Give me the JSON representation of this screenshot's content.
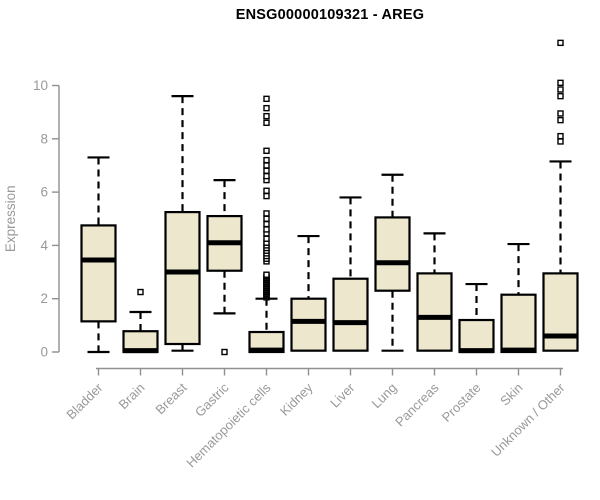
{
  "chart_data": {
    "type": "boxplot",
    "title": "ENSG00000109321 - AREG",
    "ylabel": "Expression",
    "xlabel": "",
    "ylim": [
      0,
      11.8
    ],
    "yticks": [
      0,
      2,
      4,
      6,
      8,
      10
    ],
    "grid": false,
    "legend": false,
    "categories": [
      "Bladder",
      "Brain",
      "Breast",
      "Gastric",
      "Hematopoietic cells",
      "Kidney",
      "Liver",
      "Lung",
      "Pancreas",
      "Prostate",
      "Skin",
      "Unknown / Other"
    ],
    "series": [
      {
        "category": "Bladder",
        "whisker_low": 0.0,
        "q1": 1.15,
        "median": 3.45,
        "q3": 4.75,
        "whisker_high": 7.3,
        "outliers": []
      },
      {
        "category": "Brain",
        "whisker_low": 0.0,
        "q1": 0.0,
        "median": 0.05,
        "q3": 0.78,
        "whisker_high": 1.5,
        "outliers": [
          2.25
        ]
      },
      {
        "category": "Breast",
        "whisker_low": 0.05,
        "q1": 0.3,
        "median": 3.0,
        "q3": 5.25,
        "whisker_high": 9.6,
        "outliers": []
      },
      {
        "category": "Gastric",
        "whisker_low": 1.45,
        "q1": 3.05,
        "median": 4.1,
        "q3": 5.1,
        "whisker_high": 6.45,
        "outliers": [
          0.0
        ]
      },
      {
        "category": "Hematopoietic cells",
        "whisker_low": 0.0,
        "q1": 0.0,
        "median": 0.07,
        "q3": 0.75,
        "whisker_high": 2.0,
        "outliers": [
          2.05,
          2.1,
          2.15,
          2.2,
          2.25,
          2.3,
          2.35,
          2.4,
          2.45,
          2.5,
          2.55,
          2.6,
          2.65,
          2.7,
          2.75,
          2.8,
          2.85,
          2.9,
          3.4,
          3.5,
          3.6,
          3.7,
          3.8,
          3.9,
          4.0,
          4.1,
          4.25,
          4.45,
          4.6,
          4.8,
          5.0,
          5.2,
          5.85,
          6.05,
          6.45,
          6.6,
          6.8,
          7.0,
          7.2,
          7.55,
          8.6,
          8.85,
          9.15,
          9.5
        ]
      },
      {
        "category": "Kidney",
        "whisker_low": 0.05,
        "q1": 0.05,
        "median": 1.15,
        "q3": 2.0,
        "whisker_high": 4.35,
        "outliers": []
      },
      {
        "category": "Liver",
        "whisker_low": 0.05,
        "q1": 0.05,
        "median": 1.1,
        "q3": 2.75,
        "whisker_high": 5.8,
        "outliers": []
      },
      {
        "category": "Lung",
        "whisker_low": 0.05,
        "q1": 2.3,
        "median": 3.35,
        "q3": 5.05,
        "whisker_high": 6.65,
        "outliers": []
      },
      {
        "category": "Pancreas",
        "whisker_low": 0.05,
        "q1": 0.05,
        "median": 1.3,
        "q3": 2.95,
        "whisker_high": 4.45,
        "outliers": []
      },
      {
        "category": "Prostate",
        "whisker_low": 0.0,
        "q1": 0.0,
        "median": 0.05,
        "q3": 1.2,
        "whisker_high": 2.55,
        "outliers": []
      },
      {
        "category": "Skin",
        "whisker_low": 0.0,
        "q1": 0.0,
        "median": 0.07,
        "q3": 2.15,
        "whisker_high": 4.05,
        "outliers": []
      },
      {
        "category": "Unknown / Other",
        "whisker_low": 0.05,
        "q1": 0.05,
        "median": 0.6,
        "q3": 2.95,
        "whisker_high": 7.15,
        "outliers": [
          7.9,
          8.1,
          8.7,
          8.95,
          9.6,
          9.85,
          10.1,
          11.6
        ]
      }
    ],
    "colors": {
      "box_fill": "#EDE7CD",
      "box_border": "#000000",
      "median": "#000000",
      "whisker": "#000000",
      "outlier_fill": "#FFFFFF",
      "axis": "#909090",
      "tick_label": "#999999",
      "title": "#000000",
      "background": "#FFFFFF"
    }
  }
}
